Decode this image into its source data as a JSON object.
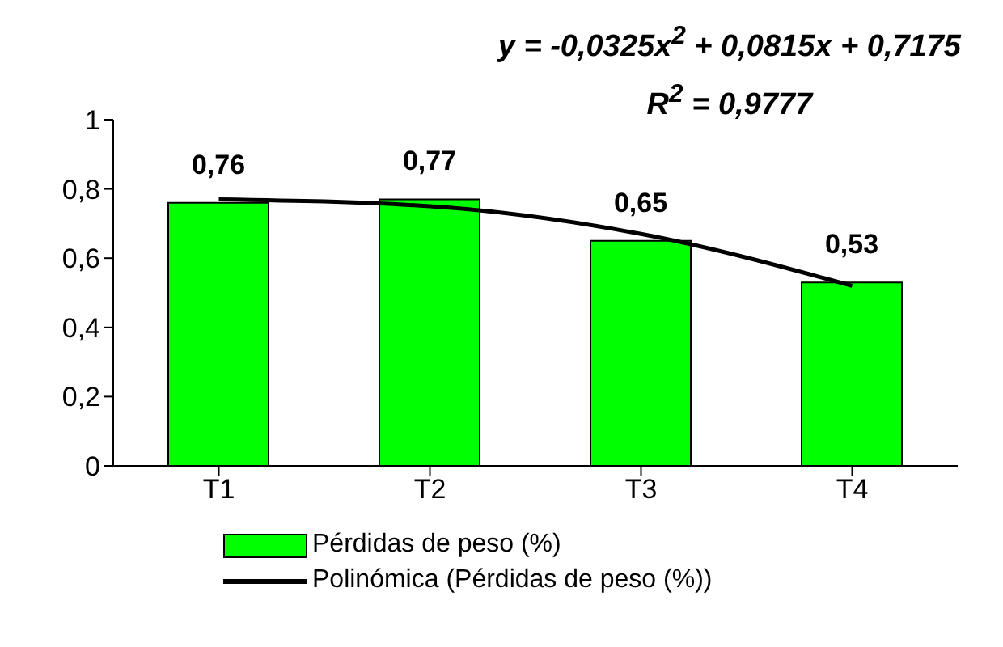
{
  "chart_data": {
    "type": "bar",
    "categories": [
      "T1",
      "T2",
      "T3",
      "T4"
    ],
    "series": [
      {
        "name": "Pérdidas de peso (%)",
        "color": "#00ff00",
        "values": [
          0.76,
          0.77,
          0.65,
          0.53
        ],
        "value_labels": [
          "0,76",
          "0,77",
          "0,65",
          "0,53"
        ]
      },
      {
        "name": "Polinómica (Pérdidas de peso (%))",
        "type": "line",
        "color": "#000000",
        "values": [
          0.77,
          0.75,
          0.67,
          0.52
        ]
      }
    ],
    "ylim": [
      0,
      1
    ],
    "yticks": [
      {
        "value": 0,
        "label": "0"
      },
      {
        "value": 0.2,
        "label": "0,2"
      },
      {
        "value": 0.4,
        "label": "0,4"
      },
      {
        "value": 0.6,
        "label": "0,6"
      },
      {
        "value": 0.8,
        "label": "0,8"
      },
      {
        "value": 1,
        "label": "1"
      }
    ],
    "annotations": [
      "y = -0,0325x$^{2}$ + 0,0815x + 0,7175",
      "R$^{2}$ = 0,9777"
    ],
    "grid": false,
    "legend": "bottom",
    "marker": "none",
    "line_style": "solid"
  }
}
